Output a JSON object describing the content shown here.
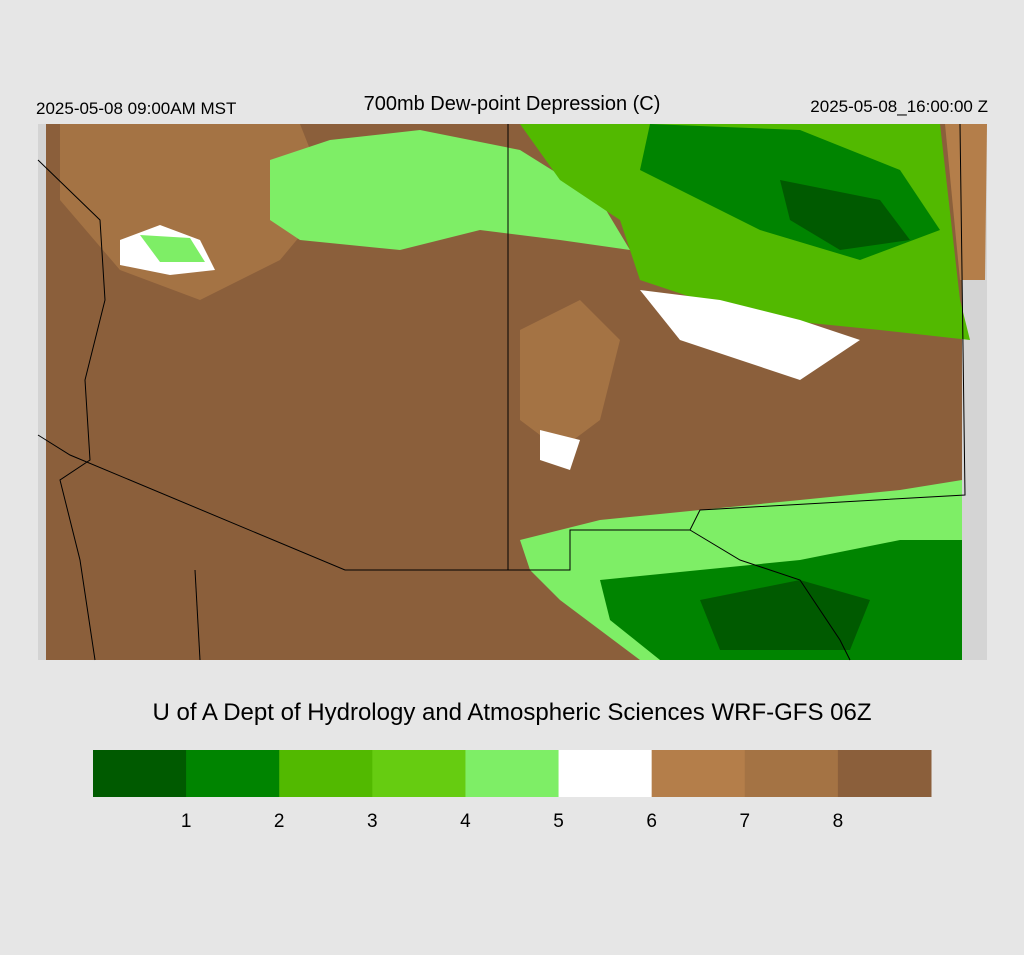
{
  "header": {
    "left": "2025-05-08 09:00AM MST",
    "title": "700mb Dew-point Depression (C)",
    "right": "2025-05-08_16:00:00 Z"
  },
  "credit": "U of A Dept of Hydrology and Atmospheric Sciences WRF-GFS 06Z",
  "colorbar": {
    "colors": [
      "#005a00",
      "#008400",
      "#52b900",
      "#66cc11",
      "#7eee66",
      "#ffffff",
      "#b47e4a",
      "#a47344",
      "#8b5f3b"
    ],
    "ticks": [
      1,
      2,
      3,
      4,
      5,
      6,
      7,
      8
    ]
  }
}
